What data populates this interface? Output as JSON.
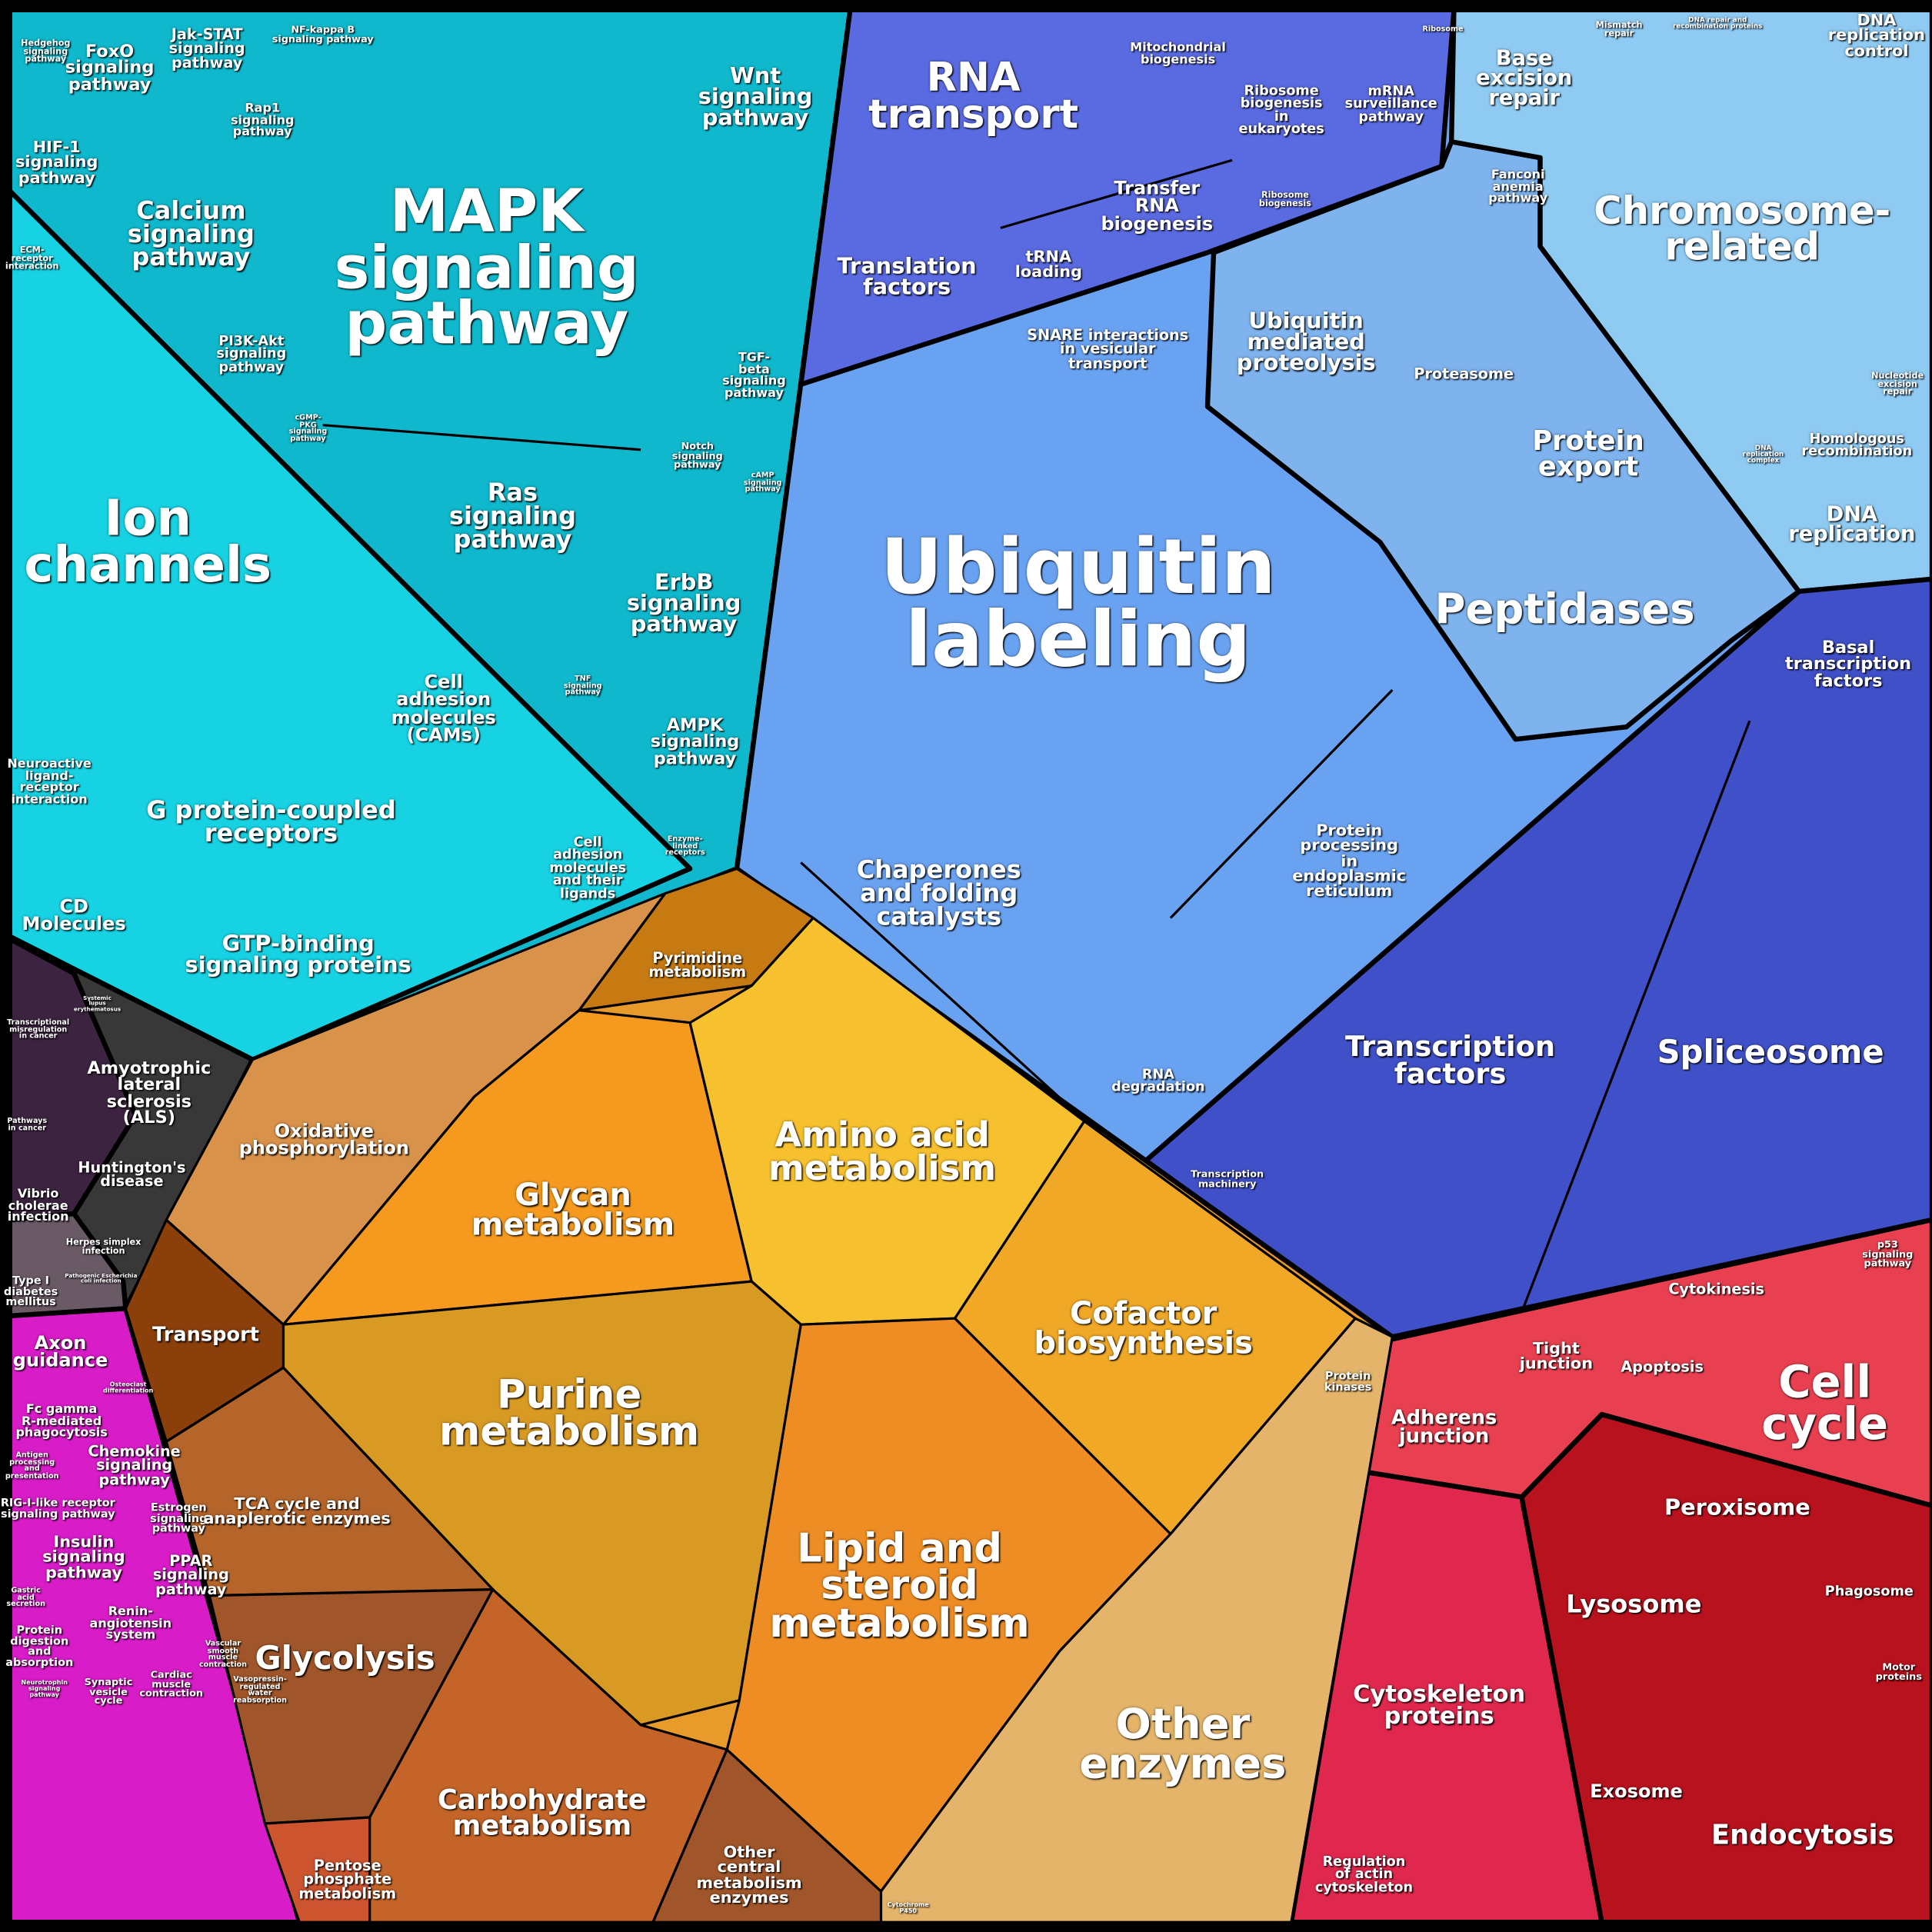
{
  "colors": {
    "signaling": "#0fb8cc",
    "ion_channels": "#16d2e2",
    "disease": "#383838",
    "immune_endocrine": "#d81cc8",
    "metabolism": "#e89a2a",
    "ubiquitin": "#6aa2f2",
    "rna": "#5a6ae0",
    "chromosome": "#8fcaf2",
    "proteolysis": "#7eb3ee",
    "transcription": "#4050c8",
    "cell_cycle": "#e84050",
    "cytoskeleton": "#e0284e",
    "lysosome": "#b8121e"
  },
  "signaling": {
    "mapk": "MAPK\nsignaling\npathway",
    "wnt": "Wnt\nsignaling\npathway",
    "calcium": "Calcium\nsignaling\npathway",
    "foxo": "FoxO\nsignaling\npathway",
    "jak_stat": "Jak-STAT\nsignaling\npathway",
    "nfkb": "NF-kappa B\nsignaling pathway",
    "hedgehog": "Hedgehog\nsignaling\npathway",
    "hif1": "HIF-1\nsignaling\npathway",
    "rap1": "Rap1\nsignaling\npathway",
    "ecm": "ECM-\nreceptor\ninteraction",
    "pi3k": "PI3K-Akt\nsignaling\npathway",
    "cgmp": "cGMP-\nPKG\nsignaling\npathway",
    "tgf": "TGF-\nbeta\nsignaling\npathway",
    "notch": "Notch\nsignaling\npathway",
    "camp": "cAMP\nsignaling\npathway",
    "ras": "Ras\nsignaling\npathway",
    "erbb": "ErbB\nsignaling\npathway",
    "tnf": "TNF\nsignaling\npathway",
    "ampk": "AMPK\nsignaling\npathway"
  },
  "receptors": {
    "ion_channels": "Ion\nchannels",
    "cams": "Cell\nadhesion\nmolecules\n(CAMs)",
    "gpcr": "G protein-coupled\nreceptors",
    "neuroactive": "Neuroactive\nligand-\nreceptor\ninteraction",
    "cd": "CD\nMolecules",
    "gtp": "GTP-binding\nsignaling proteins",
    "cell_adhesion_ligands": "Cell\nadhesion\nmolecules\nand their\nligands",
    "enzyme_linked": "Enzyme-\nlinked\nreceptors"
  },
  "disease": {
    "transcriptional": "Transcriptional\nmisregulation\nin cancer",
    "lupus": "Systemic\nlupus\nerythematosus",
    "als": "Amyotrophic\nlateral\nsclerosis\n(ALS)",
    "pathways_cancer": "Pathways\nin cancer",
    "huntington": "Huntington's\ndisease",
    "vibrio": "Vibrio\ncholerae\ninfection",
    "herpes": "Herpes simplex\ninfection",
    "ecoli": "Pathogenic Escherichia\ncoli infection",
    "diabetes": "Type I\ndiabetes\nmellitus"
  },
  "immune_endocrine": {
    "axon": "Axon\nguidance",
    "osteoclast": "Osteoclast\ndifferentiation",
    "fc_gamma": "Fc gamma\nR-mediated\nphagocytosis",
    "antigen": "Antigen\nprocessing\nand\npresentation",
    "chemokine": "Chemokine\nsignaling\npathway",
    "rig": "RIG-I-like receptor\nsignaling pathway",
    "estrogen": "Estrogen\nsignaling\npathway",
    "insulin": "Insulin\nsignaling\npathway",
    "ppar": "PPAR\nsignaling\npathway",
    "gastric": "Gastric\nacid\nsecretion",
    "renin": "Renin-\nangiotensin\nsystem",
    "protein_digestion": "Protein\ndigestion\nand\nabsorption",
    "vascular": "Vascular\nsmooth\nmuscle\ncontraction",
    "neurotrophin": "Neurotrophin\nsignaling\npathway",
    "synaptic": "Synaptic\nvesicle\ncycle",
    "cardiac": "Cardiac\nmuscle\ncontraction",
    "vasopressin": "Vasopressin-\nregulated\nwater\nreabsorption"
  },
  "metabolism": {
    "transport": "Transport",
    "oxphos": "Oxidative\nphosphorylation",
    "pyrimidine": "Pyrimidine\nmetabolism",
    "glycan": "Glycan\nmetabolism",
    "amino_acid": "Amino acid\nmetabolism",
    "cofactor": "Cofactor\nbiosynthesis",
    "purine": "Purine\nmetabolism",
    "lipid": "Lipid and\nsteroid\nmetabolism",
    "tca": "TCA cycle and\nanaplerotic enzymes",
    "glycolysis": "Glycolysis",
    "carbohydrate": "Carbohydrate\nmetabolism",
    "pentose": "Pentose\nphosphate\nmetabolism",
    "other_central": "Other\ncentral\nmetabolism\nenzymes",
    "other_enzymes": "Other\nenzymes",
    "protein_kinases": "Protein\nkinases",
    "cyp450": "Cytochrome\nP450"
  },
  "genetic_info": {
    "rna_transport": "RNA\ntransport",
    "mito": "Mitochondrial\nbiogenesis",
    "ribo_euk": "Ribosome\nbiogenesis\nin\neukaryotes",
    "mrna": "mRNA\nsurveillance\npathway",
    "ribosome": "Ribosome",
    "ribo_bio": "Ribosome\nbiogenesis",
    "trna_bio": "Transfer\nRNA\nbiogenesis",
    "translation": "Translation\nfactors",
    "trna_loading": "tRNA\nloading",
    "snare": "SNARE interactions\nin vesicular\ntransport",
    "ubiq_mediated": "Ubiquitin\nmediated\nproteolysis",
    "proteasome": "Proteasome",
    "ubiquitin": "Ubiquitin\nlabeling",
    "peptidases": "Peptidases",
    "protein_export": "Protein\nexport",
    "chaperones": "Chaperones\nand folding\ncatalysts",
    "er_processing": "Protein\nprocessing\nin\nendoplasmic\nreticulum",
    "rna_degradation": "RNA\ndegradation",
    "base_excision": "Base\nexcision\nrepair",
    "mismatch": "Mismatch\nrepair",
    "dna_repair": "DNA repair and\nrecombination proteins",
    "dna_rep_control": "DNA\nreplication\ncontrol",
    "fanconi": "Fanconi\nanemia\npathway",
    "chromosome": "Chromosome-\nrelated",
    "nucleotide_excision": "Nucleotide\nexcision\nrepair",
    "dna_rep_complex": "DNA\nreplication\ncomplex",
    "homologous": "Homologous\nrecombination",
    "dna_replication": "DNA\nreplication",
    "basal_tf": "Basal\ntranscription\nfactors",
    "spliceosome": "Spliceosome",
    "tf": "Transcription\nfactors",
    "transcription_machinery": "Transcription\nmachinery"
  },
  "cellular": {
    "p53": "p53\nsignaling\npathway",
    "cytokinesis": "Cytokinesis",
    "tight": "Tight\njunction",
    "apoptosis": "Apoptosis",
    "cell_cycle": "Cell\ncycle",
    "adherens": "Adherens\njunction",
    "peroxisome": "Peroxisome",
    "lysosome": "Lysosome",
    "phagosome": "Phagosome",
    "motor": "Motor\nproteins",
    "cytoskeleton": "Cytoskeleton\nproteins",
    "exosome": "Exosome",
    "endocytosis": "Endocytosis",
    "actin": "Regulation\nof actin\ncytoskeleton"
  }
}
